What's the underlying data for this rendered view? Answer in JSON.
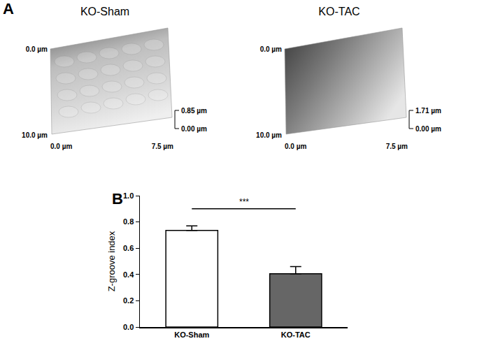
{
  "panel_labels": [
    "A",
    "B"
  ],
  "panel_a": {
    "images": [
      {
        "title": "KO-Sham",
        "y_top": "0.0 µm",
        "y_bottom": "10.0 µm",
        "x_left": "0.0 µm",
        "x_right": "7.5 µm",
        "z_top": "0.85 µm",
        "z_bottom": "0.00 µm"
      },
      {
        "title": "KO-TAC",
        "y_top": "0.0 µm",
        "y_bottom": "10.0 µm",
        "x_left": "0.0 µm",
        "x_right": "7.5 µm",
        "z_top": "1.71 µm",
        "z_bottom": "0.00 µm"
      }
    ]
  },
  "chart_data": {
    "type": "bar",
    "categories": [
      "KO-Sham",
      "KO-TAC"
    ],
    "values": [
      0.735,
      0.405
    ],
    "errors": [
      0.035,
      0.055
    ],
    "colors": [
      "#ffffff",
      "#666666"
    ],
    "ylabel": "Z-groove index",
    "ylim": [
      0,
      1.0
    ],
    "yticks": [
      {
        "value": 0,
        "label": "0.0"
      },
      {
        "value": 0.2,
        "label": "0.2"
      },
      {
        "value": 0.4,
        "label": "0.4"
      },
      {
        "value": 0.6,
        "label": "0.6"
      },
      {
        "value": 0.8,
        "label": "0.8"
      },
      {
        "value": 1.0,
        "label": "1.0"
      }
    ],
    "annotations": [
      "***"
    ]
  }
}
